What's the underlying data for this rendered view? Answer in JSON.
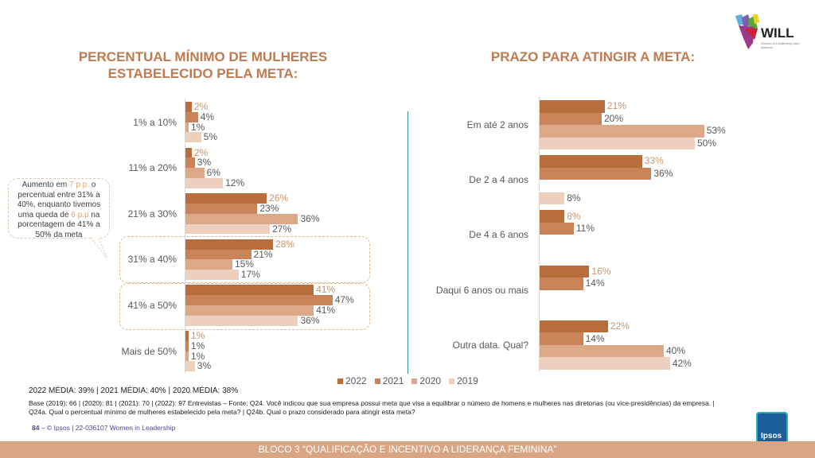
{
  "colors": {
    "2022": "#b86e3c",
    "2021": "#c88358",
    "2020": "#dba888",
    "2019": "#ecd0bd",
    "title": "#c07a50",
    "footer_band": "#d9a584",
    "divider": "#2e8f8f"
  },
  "logo": {
    "text": "WILL",
    "subtitle": "Women in Leadership Latin America"
  },
  "chart_data": [
    {
      "type": "bar",
      "orientation": "horizontal",
      "title": "PERCENTUAL MÍNIMO DE MULHERES ESTABELECIDO PELA META:",
      "categories": [
        "1% a 10%",
        "11% a 20%",
        "21% a 30%",
        "31% a 40%",
        "41% a 50%",
        "Mais de 50%"
      ],
      "series": [
        {
          "name": "2022",
          "values": [
            2,
            2,
            26,
            28,
            41,
            1
          ]
        },
        {
          "name": "2021",
          "values": [
            4,
            3,
            23,
            21,
            47,
            1
          ]
        },
        {
          "name": "2020",
          "values": [
            1,
            6,
            36,
            15,
            41,
            1
          ]
        },
        {
          "name": "2019",
          "values": [
            5,
            12,
            27,
            17,
            36,
            3
          ]
        }
      ],
      "unit": "%",
      "highlighted_categories": [
        "31% a 40%",
        "41% a 50%"
      ]
    },
    {
      "type": "bar",
      "orientation": "horizontal",
      "title": "PRAZO PARA ATINGIR A META:",
      "categories": [
        "Em até 2 anos",
        "De 2 a 4 anos",
        "De 4 a 6 anos",
        "Daqui 6 anos ou mais",
        "Outra data. Qual?"
      ],
      "series": [
        {
          "name": "2022",
          "values": [
            21,
            33,
            8,
            16,
            22
          ]
        },
        {
          "name": "2021",
          "values": [
            20,
            36,
            11,
            14,
            14
          ]
        },
        {
          "name": "2020",
          "values": [
            53,
            null,
            null,
            null,
            40
          ]
        },
        {
          "name": "2019",
          "values": [
            50,
            8,
            null,
            null,
            42
          ]
        }
      ],
      "unit": "%"
    }
  ],
  "legend": [
    "2022",
    "2021",
    "2020",
    "2019"
  ],
  "callout": {
    "p1": "Aumento em ",
    "h1": "7 p.p.",
    "p2": " o percentual entre 31% a 40%, enquanto tivemos uma queda de ",
    "h2": "6 p.p",
    "p3": " na porcentagem de 41% a 50% da meta"
  },
  "averages": "2022 MÉDIA: 39% | 2021 MÉDIA: 40% | 2020 MÉDIA: 38%",
  "base": "Base (2019): 66 | (2020): 81 | (2021): 70  | (2022): 97 Entrevistas – Fonte: Q24. Você indicou que sua empresa possui meta que visa a equilibrar o número de homens e mulheres nas diretorias (ou vice-presidências) da empresa. | Q24a. Qual o percentual mínimo de mulheres estabelecido pela meta? | Q24b. Qual o prazo considerado para atingir esta meta?",
  "footer": {
    "page": "84",
    "dash": " – ",
    "copyright": "© Ipsos | 22-036107 Women in Leadership",
    "band": "BLOCO 3 “QUALIFICAÇÃO  E INCENTIVO  A LIDERANÇA   FEMININA”",
    "ipsos": "Ipsos"
  }
}
